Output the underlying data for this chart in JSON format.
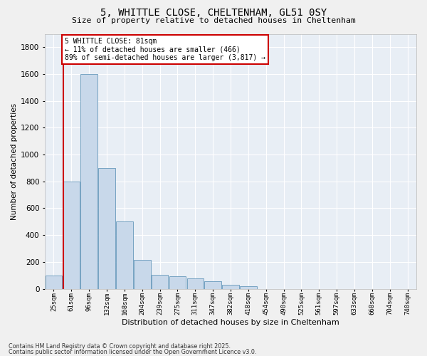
{
  "title_line1": "5, WHITTLE CLOSE, CHELTENHAM, GL51 0SY",
  "title_line2": "Size of property relative to detached houses in Cheltenham",
  "xlabel": "Distribution of detached houses by size in Cheltenham",
  "ylabel": "Number of detached properties",
  "bar_color": "#c8d8ea",
  "bar_edge_color": "#6699bb",
  "background_color": "#e8eef5",
  "grid_color": "#ffffff",
  "annotation_text": "5 WHITTLE CLOSE: 81sqm\n← 11% of detached houses are smaller (466)\n89% of semi-detached houses are larger (3,817) →",
  "footer_line1": "Contains HM Land Registry data © Crown copyright and database right 2025.",
  "footer_line2": "Contains public sector information licensed under the Open Government Licence v3.0.",
  "categories": [
    "25sqm",
    "61sqm",
    "96sqm",
    "132sqm",
    "168sqm",
    "204sqm",
    "239sqm",
    "275sqm",
    "311sqm",
    "347sqm",
    "382sqm",
    "418sqm",
    "454sqm",
    "490sqm",
    "525sqm",
    "561sqm",
    "597sqm",
    "633sqm",
    "668sqm",
    "704sqm",
    "740sqm"
  ],
  "values": [
    100,
    800,
    1600,
    900,
    500,
    215,
    105,
    95,
    75,
    55,
    30,
    20,
    0,
    0,
    0,
    0,
    0,
    0,
    0,
    0,
    0
  ],
  "ylim": [
    0,
    1900
  ],
  "yticks": [
    0,
    200,
    400,
    600,
    800,
    1000,
    1200,
    1400,
    1600,
    1800
  ],
  "marker_color": "#cc0000",
  "marker_bar_index": 1,
  "fig_width": 6.0,
  "fig_height": 5.0,
  "dpi": 100
}
